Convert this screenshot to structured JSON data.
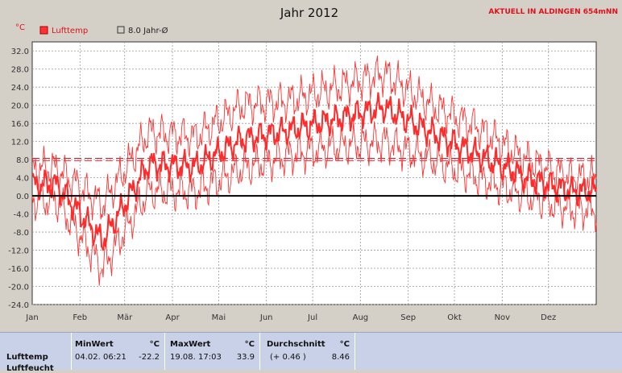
{
  "header": {
    "title": "Jahr 2012",
    "station": "AKTUELL IN ALDINGEN 654mNN",
    "unit": "°C"
  },
  "legend": [
    {
      "label": "Lufttemp",
      "color": "#ff3333",
      "marker": "filled-square"
    },
    {
      "label": "8.0 Jahr-Ø",
      "color": "#8b1a3a",
      "marker": "open-square"
    }
  ],
  "chart_data": {
    "type": "line",
    "title": "Jahr 2012",
    "ylabel": "°C",
    "ylim": [
      -24,
      34
    ],
    "yticks": [
      "32.0",
      "28.0",
      "24.0",
      "20.0",
      "16.0",
      "12.0",
      "8.0",
      "4.0",
      "0.0",
      "-4.0",
      "-8.0",
      "-12.0",
      "-16.0",
      "-20.0",
      "-24.0"
    ],
    "xlabels": [
      "Jan",
      "Feb",
      "Mär",
      "Apr",
      "Mai",
      "Jun",
      "Jul",
      "Aug",
      "Sep",
      "Okt",
      "Nov",
      "Dez"
    ],
    "grid": true,
    "reference_lines": [
      {
        "name": "8.0 Jahr-Ø",
        "value": 8.0
      }
    ],
    "series": [
      {
        "name": "Lufttemp",
        "note": "daily mean (thick) with daily max/min (thin)",
        "months": [
          1,
          2,
          3,
          4,
          5,
          6,
          7,
          8,
          9,
          10,
          11,
          12
        ],
        "mean": [
          2.5,
          -10.0,
          7.0,
          6.5,
          12.5,
          14.5,
          17.0,
          19.5,
          14.0,
          9.0,
          4.0,
          1.0
        ],
        "max": [
          6.0,
          -2.0,
          14.0,
          13.0,
          20.0,
          21.0,
          24.0,
          27.0,
          20.0,
          15.0,
          8.0,
          4.0
        ],
        "min": [
          -1.0,
          -16.0,
          1.0,
          1.0,
          6.0,
          9.0,
          11.0,
          12.0,
          8.0,
          4.0,
          0.0,
          -3.0
        ]
      }
    ]
  },
  "stats": {
    "row_label": "Lufttemp",
    "row_label_2": "Luftfeucht",
    "min_header": "MinWert",
    "min_unit": "°C",
    "min_datetime": "04.02.  06:21",
    "min_value": "-22.2",
    "max_header": "MaxWert",
    "max_unit": "°C",
    "max_datetime": "19.08.  17:03",
    "max_value": "33.9",
    "avg_header": "Durchschnitt",
    "avg_unit": "°C",
    "avg_diff": "(+ 0.46 )",
    "avg_value": "8.46"
  }
}
